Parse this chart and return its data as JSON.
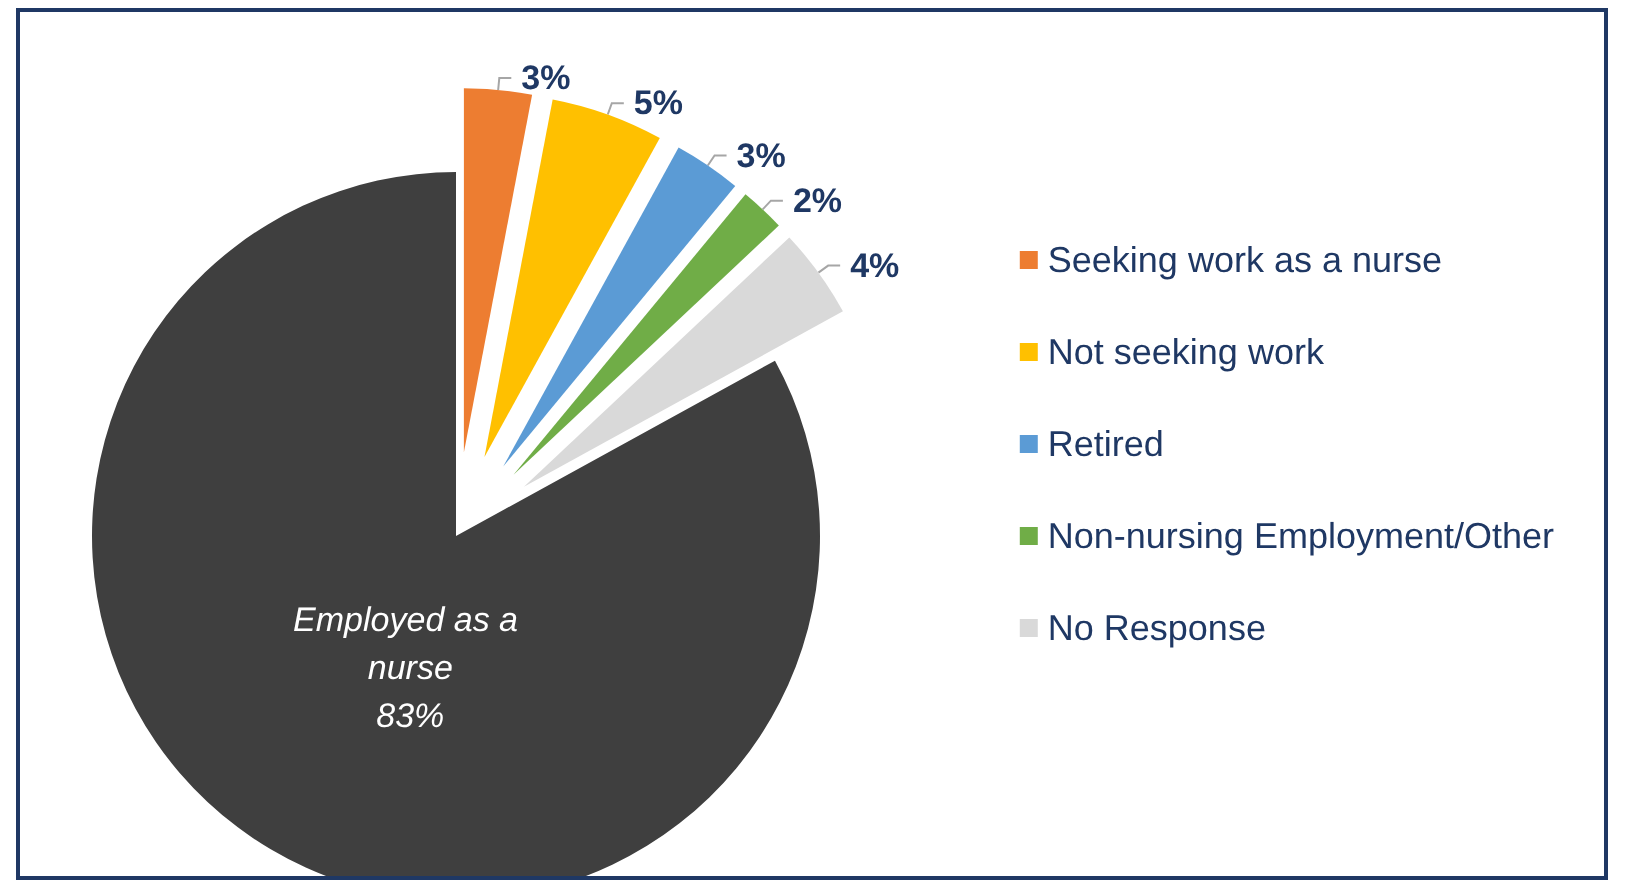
{
  "chart_data": {
    "type": "pie",
    "categories": [
      "Seeking work as a nurse",
      "Not seeking work",
      "Retired",
      "Non-nursing Employment/Other",
      "No Response",
      "Employed as a nurse"
    ],
    "values": [
      3,
      5,
      3,
      2,
      4,
      83
    ],
    "colors": [
      "#ed7d31",
      "#ffc000",
      "#5b9bd5",
      "#70ad47",
      "#d9d9d9",
      "#3f3f3f"
    ],
    "legend": "right",
    "value_labels": [
      "3%",
      "5%",
      "3%",
      "2%",
      "4%",
      "83%"
    ]
  }
}
